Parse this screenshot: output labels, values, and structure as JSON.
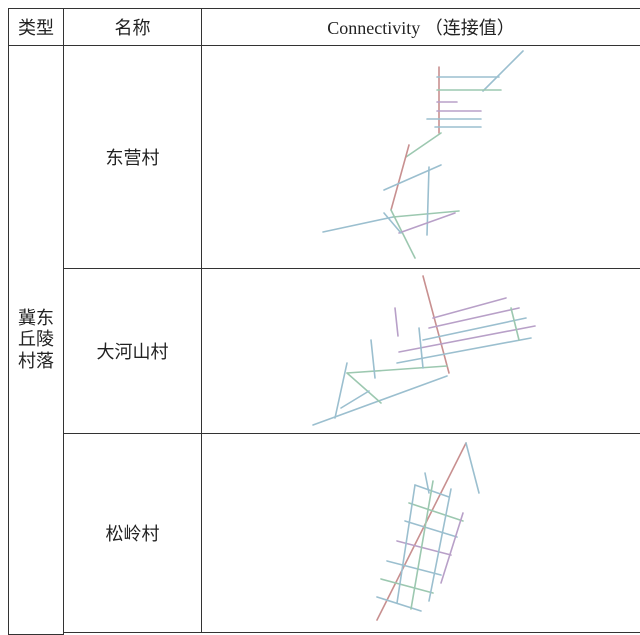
{
  "table": {
    "header": [
      "类型",
      "名称",
      "Connectivity （连接值）"
    ],
    "group": "冀东丘陵村落",
    "rows": [
      "东营村",
      "大河山村",
      "松岭村"
    ]
  }
}
